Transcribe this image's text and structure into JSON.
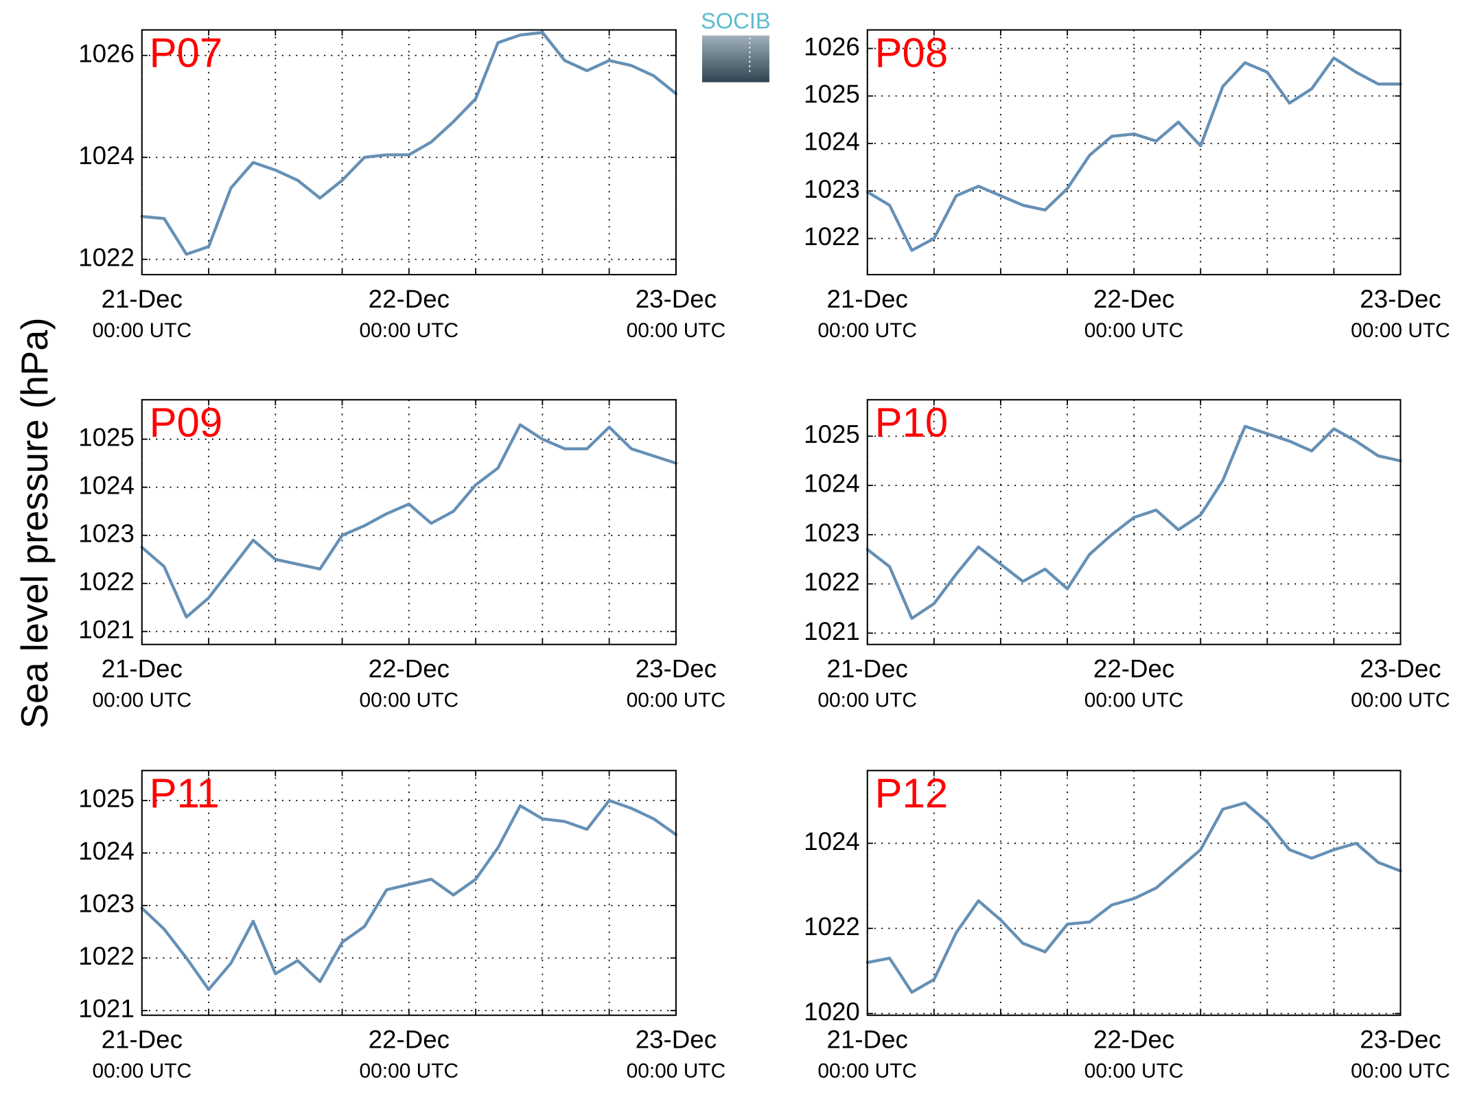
{
  "figure": {
    "ylabel": "Sea level pressure (hPa)",
    "logo": "SOCIB"
  },
  "chart_data": [
    {
      "type": "line",
      "title": "P07",
      "color": "#6590b5",
      "grid": true,
      "x": [
        0,
        2,
        4,
        6,
        8,
        10,
        12,
        14,
        16,
        18,
        20,
        22,
        24,
        26,
        28,
        30,
        32,
        34,
        36,
        38,
        40,
        42,
        44,
        46,
        48
      ],
      "values": [
        1022.84,
        1022.8,
        1022.1,
        1022.25,
        1023.4,
        1023.9,
        1023.75,
        1023.55,
        1023.2,
        1023.55,
        1024.0,
        1024.05,
        1024.05,
        1024.3,
        1024.7,
        1025.15,
        1026.25,
        1026.4,
        1026.45,
        1025.9,
        1025.7,
        1025.9,
        1025.8,
        1025.6,
        1025.25
      ],
      "xlim": [
        0,
        48
      ],
      "ylim": [
        1021.7,
        1026.5
      ],
      "yticks": [
        1022,
        1024,
        1026
      ],
      "xticks": [
        {
          "value": 0,
          "label": "21-Dec",
          "sublabel": "00:00 UTC"
        },
        {
          "value": 24,
          "label": "22-Dec",
          "sublabel": "00:00 UTC"
        },
        {
          "value": 48,
          "label": "23-Dec",
          "sublabel": "00:00 UTC"
        }
      ],
      "xminor": [
        6,
        12,
        18,
        30,
        36,
        42
      ]
    },
    {
      "type": "line",
      "title": "P08",
      "color": "#6590b5",
      "grid": true,
      "x": [
        0,
        2,
        4,
        6,
        8,
        10,
        12,
        14,
        16,
        18,
        20,
        22,
        24,
        26,
        28,
        30,
        32,
        34,
        36,
        38,
        40,
        42,
        44,
        46,
        48
      ],
      "values": [
        1022.98,
        1022.7,
        1021.75,
        1022.0,
        1022.9,
        1023.1,
        1022.9,
        1022.7,
        1022.6,
        1023.05,
        1023.75,
        1024.15,
        1024.2,
        1024.05,
        1024.45,
        1023.95,
        1025.2,
        1025.7,
        1025.5,
        1024.85,
        1025.15,
        1025.8,
        1025.5,
        1025.25,
        1025.25
      ],
      "xlim": [
        0,
        48
      ],
      "ylim": [
        1021.24,
        1026.39
      ],
      "yticks": [
        1022,
        1023,
        1024,
        1025,
        1026
      ],
      "xticks": [
        {
          "value": 0,
          "label": "21-Dec",
          "sublabel": "00:00 UTC"
        },
        {
          "value": 24,
          "label": "22-Dec",
          "sublabel": "00:00 UTC"
        },
        {
          "value": 48,
          "label": "23-Dec",
          "sublabel": "00:00 UTC"
        }
      ],
      "xminor": [
        6,
        12,
        18,
        30,
        36,
        42
      ]
    },
    {
      "type": "line",
      "title": "P09",
      "color": "#6590b5",
      "grid": true,
      "x": [
        0,
        2,
        4,
        6,
        8,
        10,
        12,
        14,
        16,
        18,
        20,
        22,
        24,
        26,
        28,
        30,
        32,
        34,
        36,
        38,
        40,
        42,
        44,
        46,
        48
      ],
      "values": [
        1022.75,
        1022.35,
        1021.3,
        1021.7,
        1022.3,
        1022.9,
        1022.5,
        1022.4,
        1022.3,
        1023.0,
        1023.2,
        1023.45,
        1023.65,
        1023.25,
        1023.5,
        1024.05,
        1024.4,
        1025.3,
        1025.0,
        1024.8,
        1024.8,
        1025.25,
        1024.8,
        1024.65,
        1024.5
      ],
      "xlim": [
        0,
        48
      ],
      "ylim": [
        1020.73,
        1025.82
      ],
      "yticks": [
        1021,
        1022,
        1023,
        1024,
        1025
      ],
      "xticks": [
        {
          "value": 0,
          "label": "21-Dec",
          "sublabel": "00:00 UTC"
        },
        {
          "value": 24,
          "label": "22-Dec",
          "sublabel": "00:00 UTC"
        },
        {
          "value": 48,
          "label": "23-Dec",
          "sublabel": "00:00 UTC"
        }
      ],
      "xminor": [
        6,
        12,
        18,
        30,
        36,
        42
      ]
    },
    {
      "type": "line",
      "title": "P10",
      "color": "#6590b5",
      "grid": true,
      "x": [
        0,
        2,
        4,
        6,
        8,
        10,
        12,
        14,
        16,
        18,
        20,
        22,
        24,
        26,
        28,
        30,
        32,
        34,
        36,
        38,
        40,
        42,
        44,
        46,
        48
      ],
      "values": [
        1022.7,
        1022.35,
        1021.3,
        1021.6,
        1022.2,
        1022.75,
        1022.4,
        1022.05,
        1022.3,
        1021.9,
        1022.6,
        1023.0,
        1023.35,
        1023.5,
        1023.1,
        1023.4,
        1024.1,
        1025.2,
        1025.05,
        1024.9,
        1024.7,
        1025.15,
        1024.9,
        1024.6,
        1024.5
      ],
      "xlim": [
        0,
        48
      ],
      "ylim": [
        1020.77,
        1025.74
      ],
      "yticks": [
        1021,
        1022,
        1023,
        1024,
        1025
      ],
      "xticks": [
        {
          "value": 0,
          "label": "21-Dec",
          "sublabel": "00:00 UTC"
        },
        {
          "value": 24,
          "label": "22-Dec",
          "sublabel": "00:00 UTC"
        },
        {
          "value": 48,
          "label": "23-Dec",
          "sublabel": "00:00 UTC"
        }
      ],
      "xminor": [
        6,
        12,
        18,
        30,
        36,
        42
      ]
    },
    {
      "type": "line",
      "title": "P11",
      "color": "#6590b5",
      "grid": true,
      "x": [
        0,
        2,
        4,
        6,
        8,
        10,
        12,
        14,
        16,
        18,
        20,
        22,
        24,
        26,
        28,
        30,
        32,
        34,
        36,
        38,
        40,
        42,
        44,
        46,
        48
      ],
      "values": [
        1022.95,
        1022.55,
        1022.0,
        1021.4,
        1021.9,
        1022.7,
        1021.7,
        1021.95,
        1021.55,
        1022.3,
        1022.6,
        1023.3,
        1023.4,
        1023.5,
        1023.2,
        1023.5,
        1024.1,
        1024.9,
        1024.65,
        1024.6,
        1024.45,
        1025.0,
        1024.85,
        1024.65,
        1024.35
      ],
      "xlim": [
        0,
        48
      ],
      "ylim": [
        1020.91,
        1025.57
      ],
      "yticks": [
        1021,
        1022,
        1023,
        1024,
        1025
      ],
      "xticks": [
        {
          "value": 0,
          "label": "21-Dec",
          "sublabel": "00:00 UTC"
        },
        {
          "value": 24,
          "label": "22-Dec",
          "sublabel": "00:00 UTC"
        },
        {
          "value": 48,
          "label": "23-Dec",
          "sublabel": "00:00 UTC"
        }
      ],
      "xminor": [
        6,
        12,
        18,
        30,
        36,
        42
      ]
    },
    {
      "type": "line",
      "title": "P12",
      "color": "#6590b5",
      "grid": true,
      "x": [
        0,
        2,
        4,
        6,
        8,
        10,
        12,
        14,
        16,
        18,
        20,
        22,
        24,
        26,
        28,
        30,
        32,
        34,
        36,
        38,
        40,
        42,
        44,
        46,
        48
      ],
      "values": [
        1021.2,
        1021.3,
        1020.5,
        1020.8,
        1021.9,
        1022.65,
        1022.2,
        1021.65,
        1021.45,
        1022.1,
        1022.15,
        1022.55,
        1022.7,
        1022.95,
        1023.4,
        1023.85,
        1024.8,
        1024.95,
        1024.5,
        1023.85,
        1023.65,
        1023.85,
        1024.0,
        1023.55,
        1023.35
      ],
      "xlim": [
        0,
        48
      ],
      "ylim": [
        1019.96,
        1025.71
      ],
      "yticks": [
        1020,
        1022,
        1024
      ],
      "xticks": [
        {
          "value": 0,
          "label": "21-Dec",
          "sublabel": "00:00 UTC"
        },
        {
          "value": 24,
          "label": "22-Dec",
          "sublabel": "00:00 UTC"
        },
        {
          "value": 48,
          "label": "23-Dec",
          "sublabel": "00:00 UTC"
        }
      ],
      "xminor": [
        6,
        12,
        18,
        30,
        36,
        42
      ]
    }
  ]
}
